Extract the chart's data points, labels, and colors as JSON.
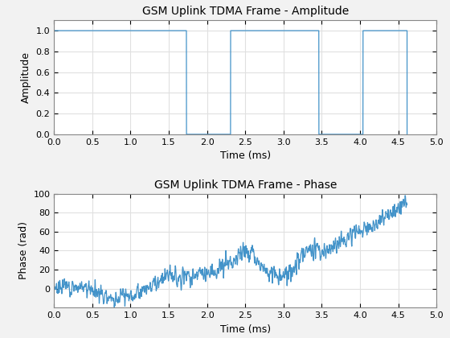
{
  "title_amp": "GSM Uplink TDMA Frame - Amplitude",
  "title_phase": "GSM Uplink TDMA Frame - Phase",
  "xlabel": "Time (ms)",
  "ylabel_amp": "Amplitude",
  "ylabel_phase": "Phase (rad)",
  "xlim": [
    0,
    5
  ],
  "ylim_amp": [
    0,
    1.1
  ],
  "ylim_phase": [
    -20,
    100
  ],
  "yticks_amp": [
    0,
    0.2,
    0.4,
    0.6,
    0.8,
    1.0
  ],
  "yticks_phase": [
    0,
    20,
    40,
    60,
    80,
    100
  ],
  "xticks": [
    0,
    0.5,
    1.0,
    1.5,
    2.0,
    2.5,
    3.0,
    3.5,
    4.0,
    4.5,
    5.0
  ],
  "line_color": "#4393C9",
  "axes_bg": "#ffffff",
  "fig_bg": "#f2f2f2",
  "grid_color": "#e0e0e0",
  "slot_duration_ms": 0.576923,
  "num_slots": 8,
  "seed": 7,
  "phase_base_times": [
    0,
    0.3,
    0.5,
    0.6,
    0.7,
    0.75,
    1.0,
    1.05,
    1.1,
    1.5,
    1.8,
    2.0,
    2.2,
    2.5,
    2.6,
    2.65,
    2.75,
    2.8,
    3.0,
    3.05,
    3.2,
    3.35,
    3.5,
    3.6,
    3.8,
    4.0,
    4.1,
    4.2,
    4.4,
    4.615
  ],
  "phase_base_vals": [
    2,
    2,
    0,
    -3,
    -8,
    -10,
    -8,
    -5,
    -3,
    12,
    13,
    16,
    22,
    40,
    38,
    32,
    22,
    17,
    14,
    15,
    30,
    43,
    38,
    40,
    50,
    60,
    65,
    68,
    80,
    93
  ],
  "noise_amplitude": 4.5,
  "figsize": [
    5.6,
    4.2
  ],
  "dpi": 100
}
